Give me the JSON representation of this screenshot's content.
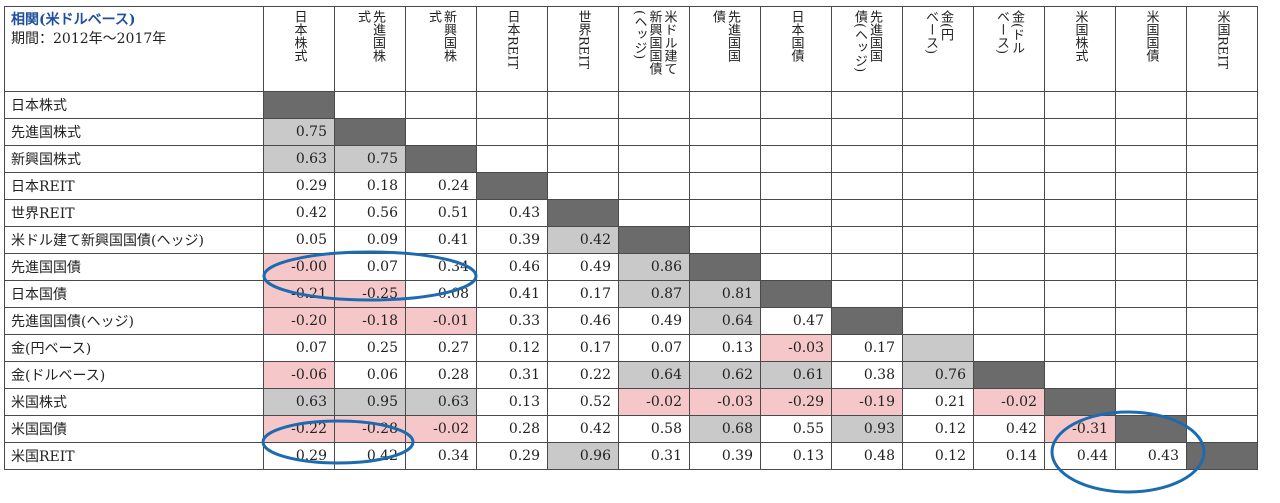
{
  "title": "相関(米ドルベース)",
  "period": "期間：2012年～2017年",
  "columns": [
    "日本株式",
    "先進国株\n式",
    "新興国株\n式",
    "日本REIT",
    "世界REIT",
    "米ドル建て\n新興国国債\n(ヘッジ)",
    "先進国国\n債",
    "日本国債",
    "先進国国\n債(ヘッジ)",
    "金(円\nベース)",
    "金(ドル\nベース)",
    "米国株式",
    "米国国債",
    "米国REIT"
  ],
  "rows": [
    {
      "label": "日本株式",
      "values": []
    },
    {
      "label": "先進国株式",
      "values": [
        "0.75"
      ]
    },
    {
      "label": "新興国株式",
      "values": [
        "0.63",
        "0.75"
      ]
    },
    {
      "label": "日本REIT",
      "values": [
        "0.29",
        "0.18",
        "0.24"
      ]
    },
    {
      "label": "世界REIT",
      "values": [
        "0.42",
        "0.56",
        "0.51",
        "0.43"
      ]
    },
    {
      "label": "米ドル建て新興国国債(ヘッジ)",
      "values": [
        "0.05",
        "0.09",
        "0.41",
        "0.39",
        "0.42"
      ]
    },
    {
      "label": "先進国国債",
      "values": [
        "-0.00",
        "0.07",
        "0.34",
        "0.46",
        "0.49",
        "0.86"
      ]
    },
    {
      "label": "日本国債",
      "values": [
        "-0.21",
        "-0.25",
        "0.08",
        "0.41",
        "0.17",
        "0.87",
        "0.81"
      ]
    },
    {
      "label": "先進国国債(ヘッジ)",
      "values": [
        "-0.20",
        "-0.18",
        "-0.01",
        "0.33",
        "0.46",
        "0.49",
        "0.64",
        "0.47"
      ]
    },
    {
      "label": "金(円ベース)",
      "values": [
        "0.07",
        "0.25",
        "0.27",
        "0.12",
        "0.17",
        "0.07",
        "0.13",
        "-0.03",
        "0.17"
      ]
    },
    {
      "label": "金(ドルベース)",
      "values": [
        "-0.06",
        "0.06",
        "0.28",
        "0.31",
        "0.22",
        "0.64",
        "0.62",
        "0.61",
        "0.38",
        "0.76"
      ]
    },
    {
      "label": "米国株式",
      "values": [
        "0.63",
        "0.95",
        "0.63",
        "0.13",
        "0.52",
        "-0.02",
        "-0.03",
        "-0.29",
        "-0.19",
        "0.21",
        "-0.02"
      ]
    },
    {
      "label": "米国国債",
      "values": [
        "-0.22",
        "-0.28",
        "-0.02",
        "0.28",
        "0.42",
        "0.58",
        "0.68",
        "0.55",
        "0.93",
        "0.12",
        "0.42",
        "-0.31"
      ]
    },
    {
      "label": "米国REIT",
      "values": [
        "0.29",
        "0.42",
        "0.34",
        "0.29",
        "0.96",
        "0.31",
        "0.39",
        "0.13",
        "0.48",
        "0.12",
        "0.14",
        "0.44",
        "0.43"
      ]
    }
  ],
  "colors": {
    "negative_fill": "#f6c7c9",
    "high_fill": "#c9c9c9",
    "diagonal_fill": "#6b6b6b",
    "title_color": "#1f4e9c",
    "oval_stroke": "#1c6bb0"
  }
}
